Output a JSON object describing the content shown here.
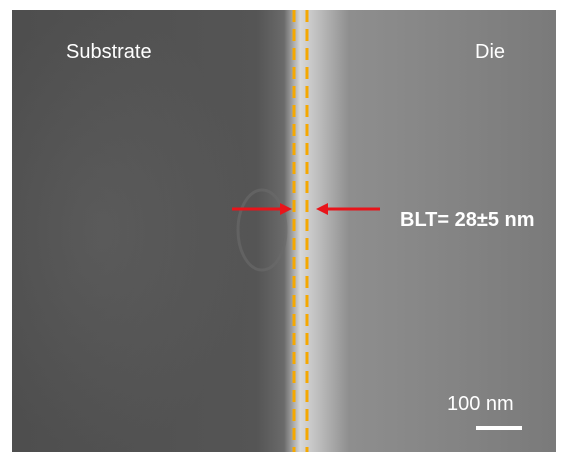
{
  "labels": {
    "left_region": "Substrate",
    "right_region": "Die",
    "measurement": "BLT= 28±5 nm",
    "scale_bar": "100 nm"
  }
}
